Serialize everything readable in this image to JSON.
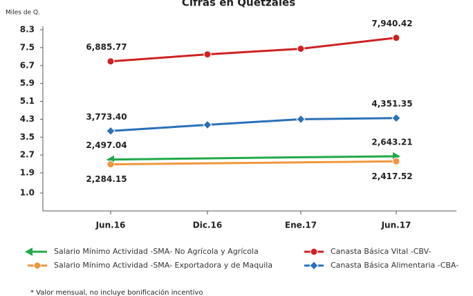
{
  "chart_data": {
    "type": "line",
    "title": "Cifras en Quetzales",
    "y_axis_label": "Miles de Q.",
    "categories": [
      "Jun.16",
      "Dic.16",
      "Ene.17",
      "Jun.17"
    ],
    "ylim": [
      0.2,
      8.3
    ],
    "yticks": [
      {
        "value": 1,
        "label": "1.0"
      },
      1.9,
      2.7,
      3.5,
      4.3,
      5.1,
      5.9,
      6.7,
      7.5,
      8.3
    ],
    "series": [
      {
        "name": "Salario Mínimo Actividad -SMA- No Agrícola y Agrícola",
        "color": "#22a84a",
        "marker": "arrow",
        "values": [
          2.49704,
          2.55,
          2.6,
          2.64321
        ],
        "value_labels": [
          "2,497.04",
          null,
          null,
          "2,643.21"
        ]
      },
      {
        "name": "Salario Mínimo Actividad -SMA- Exportadora y de Maquila",
        "color": "#f0963c",
        "marker": "end-circle",
        "values": [
          2.28415,
          2.33,
          2.37,
          2.41752
        ],
        "value_labels": [
          "2,284.15",
          null,
          null,
          "2,417.52"
        ]
      },
      {
        "name": "Canasta Básica Vital -CBV-",
        "color": "#cc2222",
        "marker": "circle",
        "values": [
          6.88577,
          7.2,
          7.45,
          7.94042
        ],
        "value_labels": [
          "6,885.77",
          null,
          null,
          "7,940.42"
        ]
      },
      {
        "name": "Canasta Básica Alimentaria -CBA-",
        "color": "#2a70b8",
        "marker": "diamond",
        "values": [
          3.7734,
          4.05,
          4.3,
          4.35135
        ],
        "value_labels": [
          "3,773.40",
          null,
          null,
          "4,351.35"
        ]
      }
    ],
    "note": "* Valor mensual, no incluye bonificación incentivo"
  }
}
